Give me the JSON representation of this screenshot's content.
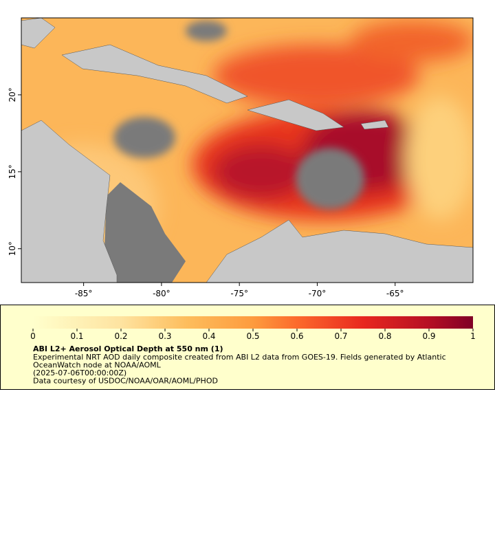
{
  "map": {
    "xlim": [
      -89,
      -60
    ],
    "ylim": [
      7.8,
      25
    ],
    "xticks": [
      {
        "value": -85,
        "label": "-85°"
      },
      {
        "value": -80,
        "label": "-80°"
      },
      {
        "value": -75,
        "label": "-75°"
      },
      {
        "value": -70,
        "label": "-70°"
      },
      {
        "value": -65,
        "label": "-65°"
      }
    ],
    "yticks": [
      {
        "value": 10,
        "label": "10°"
      },
      {
        "value": 15,
        "label": "15°"
      },
      {
        "value": 20,
        "label": "20°"
      }
    ],
    "colorbar": {
      "range": [
        0,
        1
      ],
      "ticks": [
        0,
        0.1,
        0.2,
        0.3,
        0.4,
        0.5,
        0.6,
        0.7,
        0.8,
        0.9,
        1
      ]
    },
    "title": "ABI L2+ Aerosol Optical Depth at 550 nm (1)",
    "lines": [
      "Experimental NRT AOD daily composite created from ABI L2 data from GOES-19. Fields generated by Atlantic",
      "OceanWatch node at NOAA/AOML",
      "(2025-07-06T00:00:00Z)",
      "Data courtesy of USDOC/NOAA/OAR/AOML/PHOD"
    ]
  }
}
